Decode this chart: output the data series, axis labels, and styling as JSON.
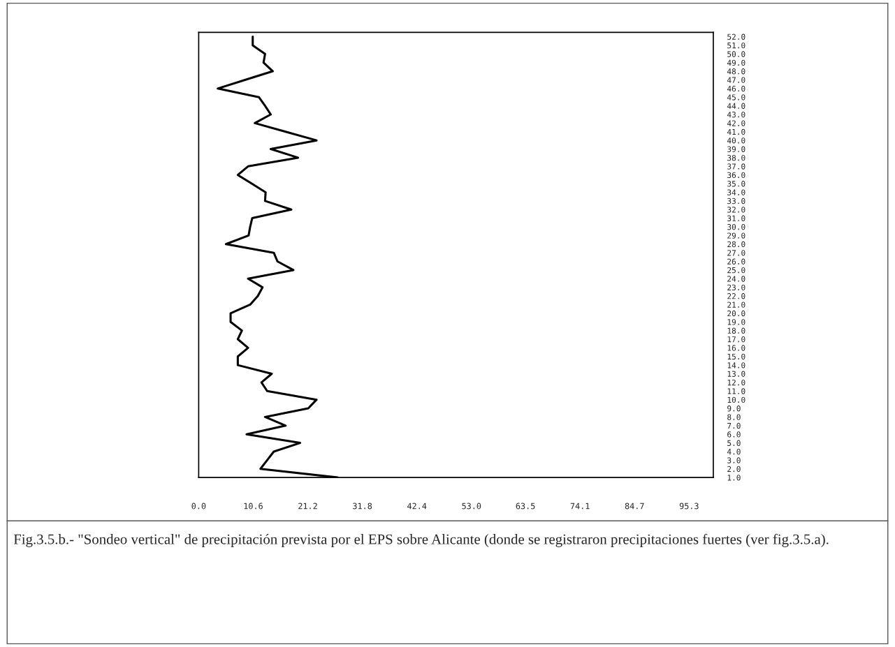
{
  "chart_data": {
    "type": "line",
    "x": [
      27,
      12,
      13.3,
      14.6,
      19.7,
      9.3,
      16.9,
      12.9,
      21.3,
      22.9,
      13.3,
      12.2,
      14.2,
      7.6,
      7.6,
      9.6,
      7.6,
      8.4,
      6.2,
      6.2,
      10,
      11.5,
      12.4,
      9.6,
      18.4,
      15.3,
      14.6,
      5.3,
      9.7,
      10,
      10.4,
      18,
      12.9,
      13,
      10.3,
      7.6,
      9.6,
      19.3,
      14,
      22.9,
      16.9,
      10.9,
      14,
      12.9,
      11.7,
      3.7,
      9,
      14.4,
      12.6,
      12.9,
      10.5,
      10.5
    ],
    "values": [
      1,
      2,
      3,
      4,
      5,
      6,
      7,
      8,
      9,
      10,
      11,
      12,
      13,
      14,
      15,
      16,
      17,
      18,
      19,
      20,
      21,
      22,
      23,
      24,
      25,
      26,
      27,
      28,
      29,
      30,
      31,
      32,
      33,
      34,
      35,
      36,
      37,
      38,
      39,
      40,
      41,
      42,
      43,
      44,
      45,
      46,
      47,
      48,
      49,
      50,
      51,
      52
    ],
    "color": "#000000",
    "xlim": [
      0,
      100
    ],
    "xticks": [
      {
        "value": 0,
        "label": "0.0"
      },
      10.6,
      21.2,
      31.8,
      42.4,
      {
        "value": 53,
        "label": "53.0"
      },
      63.5,
      74.1,
      84.7,
      95.3
    ],
    "ylim": [
      1,
      52.5
    ],
    "yticks": [
      {
        "value": 1,
        "label": "1.0"
      },
      {
        "value": 2,
        "label": "2.0"
      },
      {
        "value": 3,
        "label": "3.0"
      },
      {
        "value": 4,
        "label": "4.0"
      },
      {
        "value": 5,
        "label": "5.0"
      },
      {
        "value": 6,
        "label": "6.0"
      },
      {
        "value": 7,
        "label": "7.0"
      },
      {
        "value": 8,
        "label": "8.0"
      },
      {
        "value": 9,
        "label": "9.0"
      },
      {
        "value": 10,
        "label": "10.0"
      },
      {
        "value": 11,
        "label": "11.0"
      },
      {
        "value": 12,
        "label": "12.0"
      },
      {
        "value": 13,
        "label": "13.0"
      },
      {
        "value": 14,
        "label": "14.0"
      },
      {
        "value": 15,
        "label": "15.0"
      },
      {
        "value": 16,
        "label": "16.0"
      },
      {
        "value": 17,
        "label": "17.0"
      },
      {
        "value": 18,
        "label": "18.0"
      },
      {
        "value": 19,
        "label": "19.0"
      },
      {
        "value": 20,
        "label": "20.0"
      },
      {
        "value": 21,
        "label": "21.0"
      },
      {
        "value": 22,
        "label": "22.0"
      },
      {
        "value": 23,
        "label": "23.0"
      },
      {
        "value": 24,
        "label": "24.0"
      },
      {
        "value": 25,
        "label": "25.0"
      },
      {
        "value": 26,
        "label": "26.0"
      },
      {
        "value": 27,
        "label": "27.0"
      },
      {
        "value": 28,
        "label": "28.0"
      },
      {
        "value": 29,
        "label": "29.0"
      },
      {
        "value": 30,
        "label": "30.0"
      },
      {
        "value": 31,
        "label": "31.0"
      },
      {
        "value": 32,
        "label": "32.0"
      },
      {
        "value": 33,
        "label": "33.0"
      },
      {
        "value": 34,
        "label": "34.0"
      },
      {
        "value": 35,
        "label": "35.0"
      },
      {
        "value": 36,
        "label": "36.0"
      },
      {
        "value": 37,
        "label": "37.0"
      },
      {
        "value": 38,
        "label": "38.0"
      },
      {
        "value": 39,
        "label": "39.0"
      },
      {
        "value": 40,
        "label": "40.0"
      },
      {
        "value": 41,
        "label": "41.0"
      },
      {
        "value": 42,
        "label": "42.0"
      },
      {
        "value": 43,
        "label": "43.0"
      },
      {
        "value": 44,
        "label": "44.0"
      },
      {
        "value": 45,
        "label": "45.0"
      },
      {
        "value": 46,
        "label": "46.0"
      },
      {
        "value": 47,
        "label": "47.0"
      },
      {
        "value": 48,
        "label": "48.0"
      },
      {
        "value": 49,
        "label": "49.0"
      },
      {
        "value": 50,
        "label": "50.0"
      },
      {
        "value": 51,
        "label": "51.0"
      },
      {
        "value": 52,
        "label": "52.0"
      }
    ],
    "grid": false,
    "annotations": [
      "Fig.3.5.b.- \"Sondeo vertical\" de precipitación prevista por el EPS sobre Alicante (donde se registraron precipitaciones fuertes (ver fig.3.5.a)."
    ]
  }
}
